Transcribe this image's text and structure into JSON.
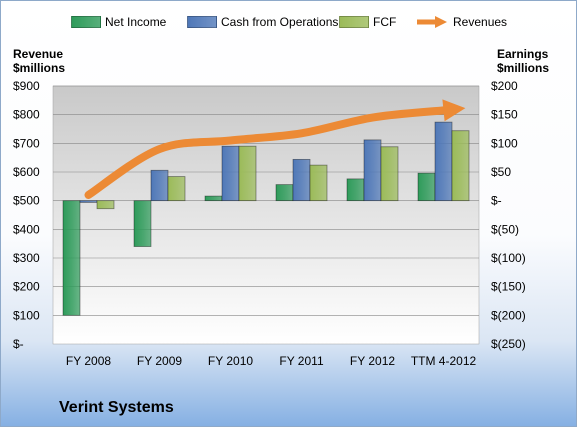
{
  "legend": {
    "items": [
      {
        "label": "Net Income",
        "color": "#2e9b5a",
        "kind": "bar"
      },
      {
        "label": "Cash from Operations",
        "color": "#4f78b8",
        "kind": "bar"
      },
      {
        "label": "FCF",
        "color": "#9bbb59",
        "kind": "bar"
      },
      {
        "label": "Revenues",
        "color": "#ec8a35",
        "kind": "arrow"
      }
    ]
  },
  "left_axis": {
    "title_line1": "Revenue",
    "title_line2": "$millions"
  },
  "right_axis": {
    "title_line1": "Earnings",
    "title_line2": "$millions"
  },
  "company": "Verint Systems",
  "chart_data": {
    "type": "bar",
    "categories": [
      "FY 2008",
      "FY 2009",
      "FY 2010",
      "FY 2011",
      "FY 2012",
      "TTM 4-2012"
    ],
    "series": [
      {
        "name": "Net Income",
        "axis": "right",
        "values": [
          -200,
          -80,
          8,
          28,
          38,
          48
        ],
        "color": "#2e9b5a"
      },
      {
        "name": "Cash from Operations",
        "axis": "right",
        "values": [
          -3,
          53,
          95,
          72,
          106,
          137
        ],
        "color": "#4f78b8"
      },
      {
        "name": "FCF",
        "axis": "right",
        "values": [
          -14,
          42,
          95,
          62,
          94,
          122
        ],
        "color": "#9bbb59"
      },
      {
        "name": "Revenues",
        "axis": "left",
        "type": "line",
        "values": [
          520,
          680,
          710,
          735,
          790,
          815
        ],
        "color": "#ec8a35"
      }
    ],
    "left_ticks": [
      "$-",
      "$100",
      "$200",
      "$300",
      "$400",
      "$500",
      "$600",
      "$700",
      "$800",
      "$900"
    ],
    "right_ticks": [
      "$(250)",
      "$(200)",
      "$(150)",
      "$(100)",
      "$(50)",
      "$-",
      "$50",
      "$100",
      "$150",
      "$200"
    ],
    "ylim_left": [
      0,
      900
    ],
    "ylim_right": [
      -250,
      200
    ],
    "grid": true,
    "legend_position": "top"
  }
}
